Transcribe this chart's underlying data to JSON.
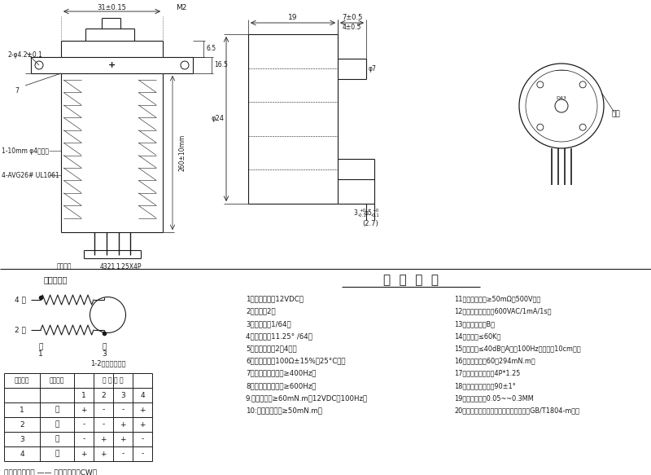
{
  "bg_color": "#ffffff",
  "line_color": "#1a1a1a",
  "title_section": "技  术  要  求",
  "specs_left": [
    "1、额定电压：12VDC；",
    "2、相数：2；",
    "3、减速比：1/64；",
    "4、步距角：11.25° /64；",
    "5、驱动方式：2相4拍；",
    "6、直流电阻：100Ω±15%（25°C）；",
    "7、空载牵入频率：≥400Hz；",
    "8、空载牵出频率：≥600Hz；",
    "9.牵入转矩：≥60mN.m（12VDC，100Hz）",
    "10:自定位转矩：≥50mN.m；"
  ],
  "specs_right": [
    "11、绝缘电阻：≥50mΩ（500V）；",
    "12、绝缘介电强度：600VAC/1mA/1s；",
    "13、绝缘等级：B；",
    "14、温升：≤60K；",
    "15、噪声：≤40dB（A）（100Hz，空载，10cm）；",
    "16、摩擦力矩：60～294mN.m；",
    "17、端子引角规格：4P*1.25",
    "18、输出轴垂直度：90±1°",
    "19、轴向间隙：0.05~~0.3MM",
    "20、括号内尺寸为参考尺寸，未注公差按GB/T1804-m级。"
  ],
  "wiring_title": "接线示意图",
  "seq_title": "1-2相励磁顺序表",
  "table_rows": [
    [
      "1",
      "蓝",
      "+",
      "-",
      "-",
      "+"
    ],
    [
      "2",
      "粉",
      "-",
      "-",
      "+",
      "+"
    ],
    [
      "3",
      "黄",
      "-",
      "+",
      "+",
      "-"
    ],
    [
      "4",
      "橙",
      "+",
      "+",
      "-",
      "-"
    ]
  ],
  "bottom_note": "从输出轴方向看 —— 顺时针方向（CW）",
  "trademark_label": "商标"
}
